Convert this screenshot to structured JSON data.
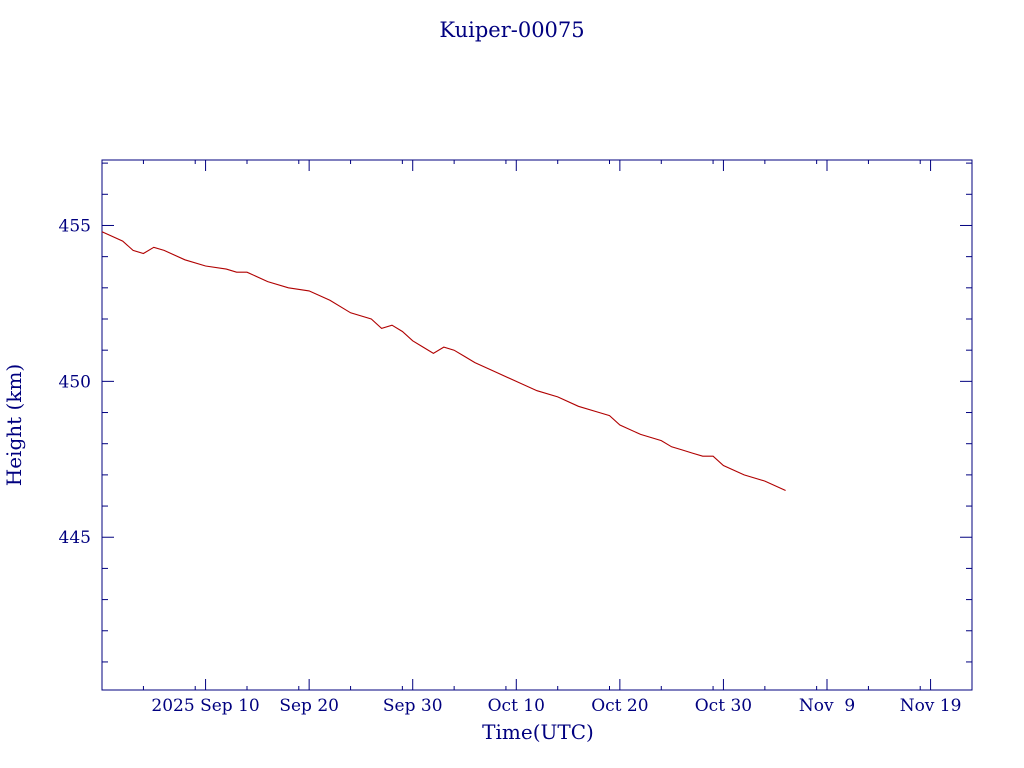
{
  "chart_data": {
    "type": "line",
    "title": "Kuiper-00075",
    "xlabel": "Time(UTC)",
    "ylabel": "Height (km)",
    "x_tick_labels": [
      "2025 Sep 10",
      "Sep 20",
      "Sep 30",
      "Oct 10",
      "Oct 20",
      "Oct 30",
      "Nov  9",
      "Nov 19"
    ],
    "x_ticks": [
      "2025-09-10",
      "2025-09-20",
      "2025-09-30",
      "2025-10-10",
      "2025-10-20",
      "2025-10-30",
      "2025-11-09",
      "2025-11-19"
    ],
    "xlim": [
      "2025-08-31",
      "2025-11-23"
    ],
    "y_tick_labels": [
      "455",
      "450",
      "445"
    ],
    "y_ticks": [
      455,
      450,
      445
    ],
    "ylim": [
      440.1,
      457.1
    ],
    "grid": false,
    "series": [
      {
        "color": "#b00000",
        "x": [
          "2025-08-31",
          "2025-09-02",
          "2025-09-03",
          "2025-09-04",
          "2025-09-05",
          "2025-09-06",
          "2025-09-08",
          "2025-09-10",
          "2025-09-12",
          "2025-09-13",
          "2025-09-14",
          "2025-09-16",
          "2025-09-18",
          "2025-09-20",
          "2025-09-22",
          "2025-09-24",
          "2025-09-26",
          "2025-09-27",
          "2025-09-28",
          "2025-09-29",
          "2025-09-30",
          "2025-10-01",
          "2025-10-02",
          "2025-10-03",
          "2025-10-04",
          "2025-10-05",
          "2025-10-06",
          "2025-10-08",
          "2025-10-10",
          "2025-10-12",
          "2025-10-14",
          "2025-10-16",
          "2025-10-18",
          "2025-10-19",
          "2025-10-20",
          "2025-10-22",
          "2025-10-24",
          "2025-10-25",
          "2025-10-26",
          "2025-10-27",
          "2025-10-28",
          "2025-10-29",
          "2025-10-30",
          "2025-11-01",
          "2025-11-03",
          "2025-11-05"
        ],
        "y": [
          454.8,
          454.5,
          454.2,
          454.1,
          454.3,
          454.2,
          453.9,
          453.7,
          453.6,
          453.5,
          453.5,
          453.2,
          453.0,
          452.9,
          452.6,
          452.2,
          452.0,
          451.7,
          451.8,
          451.6,
          451.3,
          451.1,
          450.9,
          451.1,
          451.0,
          450.8,
          450.6,
          450.3,
          450.0,
          449.7,
          449.5,
          449.2,
          449.0,
          448.9,
          448.6,
          448.3,
          448.1,
          447.9,
          447.8,
          447.7,
          447.6,
          447.6,
          447.3,
          447.0,
          446.8,
          446.5
        ]
      }
    ]
  }
}
